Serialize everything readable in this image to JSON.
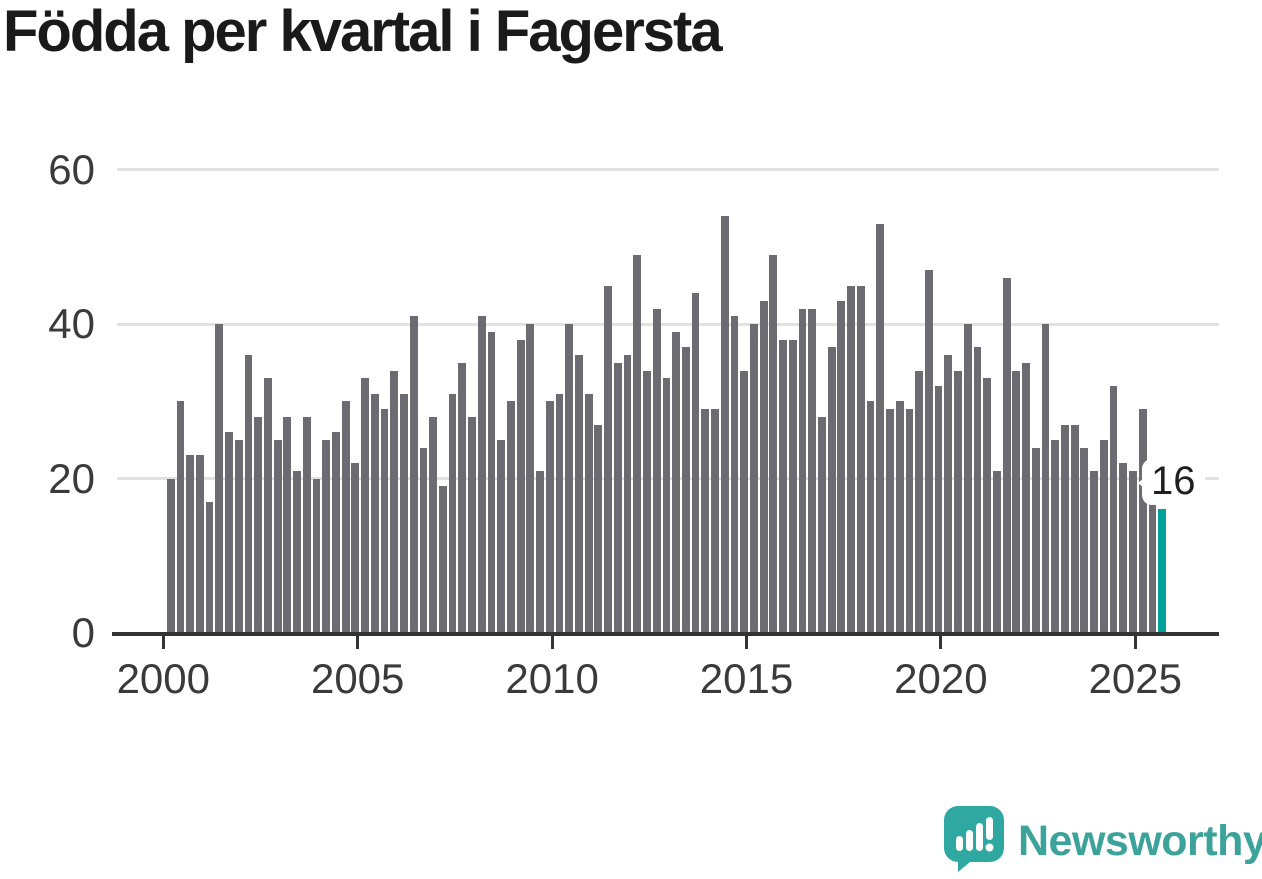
{
  "title": "Födda per kvartal i Fagersta",
  "annotation": {
    "label": "16"
  },
  "logo": {
    "text": "Newsworthy"
  },
  "colors": {
    "bar": "#6b6b71",
    "highlight": "#00a29b",
    "grid": "#e2e2e2",
    "axis": "#333333",
    "tick_text": "#3a3a3a",
    "title_text": "#1a1a1a",
    "logo_teal": "#3ca39b"
  },
  "chart_data": {
    "type": "bar",
    "title": "Födda per kvartal i Fagersta",
    "x_start": "2000-Q1",
    "x_end": "2025-Q3",
    "frequency": "quarterly",
    "values": [
      20,
      30,
      23,
      23,
      17,
      40,
      26,
      25,
      36,
      28,
      33,
      25,
      28,
      21,
      28,
      20,
      25,
      26,
      30,
      22,
      33,
      31,
      29,
      34,
      31,
      41,
      24,
      28,
      19,
      31,
      35,
      28,
      41,
      39,
      25,
      30,
      38,
      40,
      21,
      30,
      31,
      40,
      36,
      31,
      27,
      45,
      35,
      36,
      49,
      34,
      42,
      33,
      39,
      37,
      44,
      29,
      29,
      54,
      41,
      34,
      40,
      43,
      49,
      38,
      38,
      42,
      42,
      28,
      37,
      43,
      45,
      45,
      30,
      53,
      29,
      30,
      29,
      34,
      47,
      32,
      36,
      34,
      40,
      37,
      33,
      21,
      46,
      34,
      35,
      24,
      40,
      25,
      27,
      27,
      24,
      21,
      25,
      32,
      22,
      21,
      29,
      18,
      16
    ],
    "highlight_last": true,
    "last_value_label": "16",
    "y_ticks": [
      0,
      20,
      40,
      60
    ],
    "ylim": [
      0,
      60
    ],
    "x_tick_labels": [
      "2000",
      "2005",
      "2010",
      "2015",
      "2020",
      "2025"
    ],
    "grid": true,
    "legend": false
  }
}
